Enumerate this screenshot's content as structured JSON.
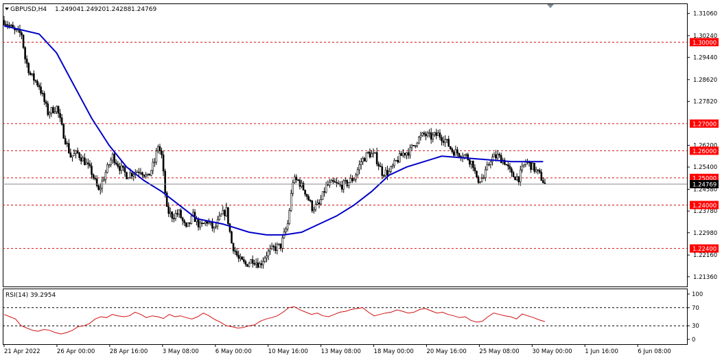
{
  "header": {
    "symbol_label": "GBPUSD,H4",
    "ohlc": [
      "1.24904",
      "1.24920",
      "1.24288",
      "1.24769"
    ]
  },
  "rsi_header": {
    "label": "RSI(14) 39.2954"
  },
  "colors": {
    "ma": "#0000c8",
    "rsi": "#d01010",
    "level": "#d01010",
    "badge": "#ff0000",
    "current_badge": "#000000",
    "candle": "#000000"
  },
  "chart_data": [
    {
      "type": "line",
      "subtype": "candlestick",
      "title": "GBPUSD,H4",
      "ylim": [
        1.21,
        1.314
      ],
      "price_ticks": [
        "1.31060",
        "1.30240",
        "1.29440",
        "1.28620",
        "1.27820",
        "1.26200",
        "1.25400",
        "1.24580",
        "1.23780",
        "1.22980",
        "1.22160",
        "1.21360"
      ],
      "x_tick_labels": [
        "21 Apr 2022",
        "26 Apr 00:00",
        "28 Apr 16:00",
        "3 May 08:00",
        "6 May 00:00",
        "10 May 16:00",
        "13 May 08:00",
        "18 May 00:00",
        "20 May 16:00",
        "25 May 08:00",
        "30 May 00:00",
        "1 Jun 16:00",
        "6 Jun 08:00"
      ],
      "horizontal_levels": [
        {
          "value": 1.3,
          "label": "1.30000"
        },
        {
          "value": 1.27,
          "label": "1.27000"
        },
        {
          "value": 1.26,
          "label": "1.26000"
        },
        {
          "value": 1.25,
          "label": "1.25000"
        },
        {
          "value": 1.24,
          "label": "1.24000"
        },
        {
          "value": 1.224,
          "label": "1.22400"
        }
      ],
      "current_price": {
        "value": 1.24769,
        "label": "1.24769"
      },
      "close_path": [
        [
          0,
          1.308
        ],
        [
          6,
          1.304
        ],
        [
          10,
          1.303
        ],
        [
          12,
          1.294
        ],
        [
          15,
          1.288
        ],
        [
          20,
          1.284
        ],
        [
          25,
          1.274
        ],
        [
          30,
          1.276
        ],
        [
          34,
          1.266
        ],
        [
          38,
          1.258
        ],
        [
          42,
          1.259
        ],
        [
          46,
          1.256
        ],
        [
          50,
          1.252
        ],
        [
          54,
          1.245
        ],
        [
          58,
          1.252
        ],
        [
          62,
          1.258
        ],
        [
          66,
          1.254
        ],
        [
          70,
          1.251
        ],
        [
          74,
          1.252
        ],
        [
          78,
          1.253
        ],
        [
          82,
          1.25
        ],
        [
          86,
          1.256
        ],
        [
          88,
          1.262
        ],
        [
          90,
          1.258
        ],
        [
          93,
          1.238
        ],
        [
          96,
          1.236
        ],
        [
          100,
          1.237
        ],
        [
          104,
          1.231
        ],
        [
          108,
          1.236
        ],
        [
          112,
          1.232
        ],
        [
          116,
          1.234
        ],
        [
          120,
          1.231
        ],
        [
          124,
          1.236
        ],
        [
          127,
          1.238
        ],
        [
          130,
          1.226
        ],
        [
          134,
          1.22
        ],
        [
          138,
          1.218
        ],
        [
          142,
          1.22
        ],
        [
          146,
          1.218
        ],
        [
          150,
          1.222
        ],
        [
          154,
          1.224
        ],
        [
          158,
          1.225
        ],
        [
          162,
          1.233
        ],
        [
          165,
          1.249
        ],
        [
          168,
          1.249
        ],
        [
          172,
          1.245
        ],
        [
          176,
          1.239
        ],
        [
          180,
          1.24
        ],
        [
          184,
          1.247
        ],
        [
          188,
          1.248
        ],
        [
          192,
          1.247
        ],
        [
          196,
          1.248
        ],
        [
          200,
          1.25
        ],
        [
          204,
          1.256
        ],
        [
          208,
          1.259
        ],
        [
          212,
          1.258
        ],
        [
          216,
          1.252
        ],
        [
          220,
          1.252
        ],
        [
          224,
          1.256
        ],
        [
          228,
          1.259
        ],
        [
          232,
          1.26
        ],
        [
          236,
          1.264
        ],
        [
          240,
          1.266
        ],
        [
          244,
          1.265
        ],
        [
          248,
          1.266
        ],
        [
          252,
          1.264
        ],
        [
          256,
          1.26
        ],
        [
          260,
          1.259
        ],
        [
          264,
          1.258
        ],
        [
          268,
          1.255
        ],
        [
          270,
          1.249
        ],
        [
          274,
          1.25
        ],
        [
          278,
          1.257
        ],
        [
          282,
          1.258
        ],
        [
          286,
          1.256
        ],
        [
          290,
          1.251
        ],
        [
          294,
          1.25
        ],
        [
          298,
          1.256
        ],
        [
          302,
          1.254
        ],
        [
          306,
          1.251
        ],
        [
          309,
          1.2477
        ]
      ],
      "ma_path": [
        [
          0,
          1.306
        ],
        [
          20,
          1.303
        ],
        [
          30,
          1.296
        ],
        [
          40,
          1.284
        ],
        [
          50,
          1.272
        ],
        [
          60,
          1.262
        ],
        [
          70,
          1.254
        ],
        [
          80,
          1.249
        ],
        [
          90,
          1.245
        ],
        [
          100,
          1.24
        ],
        [
          110,
          1.235
        ],
        [
          125,
          1.233
        ],
        [
          140,
          1.23
        ],
        [
          150,
          1.229
        ],
        [
          160,
          1.229
        ],
        [
          170,
          1.23
        ],
        [
          180,
          1.233
        ],
        [
          190,
          1.236
        ],
        [
          200,
          1.24
        ],
        [
          210,
          1.245
        ],
        [
          220,
          1.251
        ],
        [
          230,
          1.254
        ],
        [
          240,
          1.256
        ],
        [
          250,
          1.258
        ],
        [
          260,
          1.2575
        ],
        [
          270,
          1.257
        ],
        [
          280,
          1.2565
        ],
        [
          290,
          1.256
        ],
        [
          300,
          1.256
        ],
        [
          308,
          1.256
        ]
      ]
    },
    {
      "type": "line",
      "title": "RSI(14) 39.2954",
      "ylim": [
        0,
        100
      ],
      "ticks": [
        "100",
        "70",
        "30",
        "0"
      ],
      "levels": [
        70,
        30
      ],
      "values": [
        55,
        50,
        45,
        30,
        25,
        20,
        18,
        22,
        20,
        15,
        12,
        15,
        20,
        28,
        30,
        35,
        45,
        50,
        48,
        55,
        52,
        50,
        52,
        60,
        55,
        48,
        52,
        50,
        46,
        55,
        50,
        52,
        48,
        45,
        50,
        58,
        52,
        44,
        38,
        30,
        28,
        25,
        26,
        30,
        32,
        40,
        45,
        48,
        52,
        60,
        70,
        72,
        65,
        60,
        55,
        58,
        52,
        50,
        55,
        60,
        62,
        66,
        68,
        70,
        60,
        52,
        55,
        58,
        60,
        65,
        62,
        58,
        60,
        66,
        68,
        63,
        58,
        60,
        55,
        52,
        48,
        50,
        42,
        38,
        40,
        50,
        58,
        55,
        52,
        50,
        45,
        56,
        52,
        48,
        43,
        39.3
      ]
    }
  ]
}
